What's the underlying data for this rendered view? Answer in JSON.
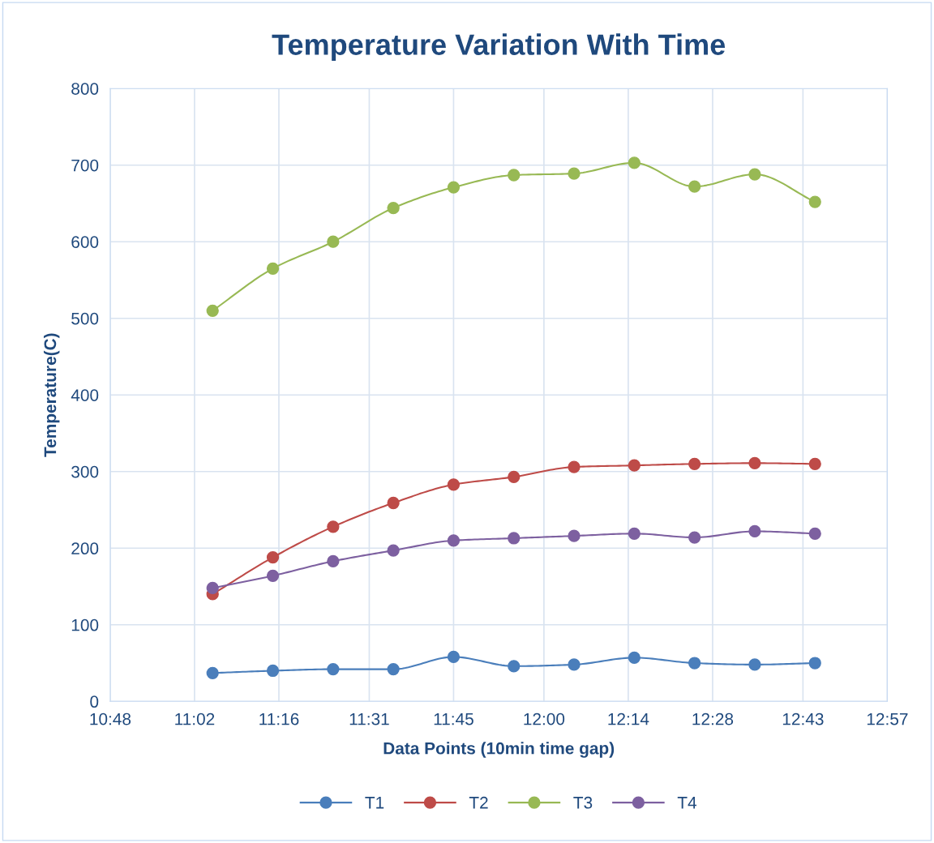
{
  "chart_data": {
    "type": "line",
    "title": "Temperature Variation With Time",
    "xlabel": "Data Points (10min time gap)",
    "ylabel": "Temperature(C)",
    "x": [
      11.0833,
      11.25,
      11.4167,
      11.5833,
      11.75,
      11.9167,
      12.0833,
      12.25,
      12.4167,
      12.5833,
      12.75
    ],
    "series": [
      {
        "name": "T1",
        "color": "#4a7ebb",
        "values": [
          37,
          40,
          42,
          42,
          58,
          46,
          48,
          57,
          50,
          48,
          50
        ]
      },
      {
        "name": "T2",
        "color": "#be4b48",
        "values": [
          140,
          188,
          228,
          259,
          283,
          293,
          306,
          308,
          310,
          311,
          310
        ]
      },
      {
        "name": "T3",
        "color": "#98b954",
        "values": [
          510,
          565,
          600,
          644,
          671,
          687,
          689,
          703,
          672,
          688,
          652
        ]
      },
      {
        "name": "T4",
        "color": "#7d60a0",
        "values": [
          148,
          164,
          183,
          197,
          210,
          213,
          216,
          219,
          214,
          222,
          219
        ]
      }
    ],
    "xlim": [
      10.8,
      12.95
    ],
    "xticks": [
      {
        "value": 10.8,
        "label": "10:48"
      },
      {
        "value": 11.0333,
        "label": "11:02"
      },
      {
        "value": 11.2667,
        "label": "11:16"
      },
      {
        "value": 11.5167,
        "label": "11:31"
      },
      {
        "value": 11.75,
        "label": "11:45"
      },
      {
        "value": 12.0,
        "label": "12:00"
      },
      {
        "value": 12.2333,
        "label": "12:14"
      },
      {
        "value": 12.4667,
        "label": "12:28"
      },
      {
        "value": 12.7167,
        "label": "12:43"
      },
      {
        "value": 12.95,
        "label": "12:57"
      }
    ],
    "ylim": [
      0,
      800
    ],
    "yticks": [
      0,
      100,
      200,
      300,
      400,
      500,
      600,
      700,
      800
    ],
    "grid": true,
    "legend": "bottom",
    "marker": "circle",
    "line_style": "solid"
  }
}
